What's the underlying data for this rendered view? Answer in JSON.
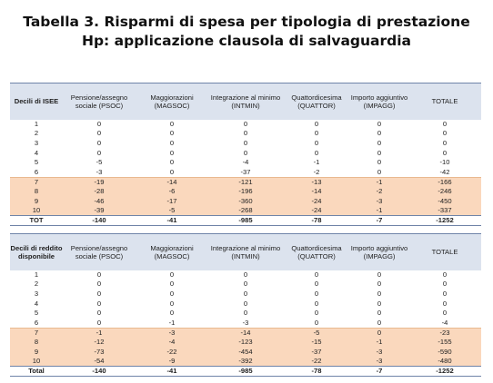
{
  "title": {
    "line1": "Tabella 3. Risparmi di spesa per tipologia di prestazione",
    "line2": "Hp: applicazione clausola di salvaguardia"
  },
  "table1": {
    "header": {
      "first": "Decili di ISEE",
      "cols": [
        "Pensione/assegno sociale (PSOC)",
        "Maggiorazioni (MAGSOC)",
        "Integrazione al minimo (INTMIN)",
        "Quattordicesima (QUATTOR)",
        "Importo aggiuntivo (IMPAGG)",
        "TOTALE"
      ]
    },
    "rows": [
      {
        "label": "1",
        "values": [
          "0",
          "0",
          "0",
          "0",
          "0",
          "0"
        ],
        "highlight": false
      },
      {
        "label": "2",
        "values": [
          "0",
          "0",
          "0",
          "0",
          "0",
          "0"
        ],
        "highlight": false
      },
      {
        "label": "3",
        "values": [
          "0",
          "0",
          "0",
          "0",
          "0",
          "0"
        ],
        "highlight": false
      },
      {
        "label": "4",
        "values": [
          "0",
          "0",
          "0",
          "0",
          "0",
          "0"
        ],
        "highlight": false
      },
      {
        "label": "5",
        "values": [
          "-5",
          "0",
          "-4",
          "-1",
          "0",
          "-10"
        ],
        "highlight": false
      },
      {
        "label": "6",
        "values": [
          "-3",
          "0",
          "-37",
          "-2",
          "0",
          "-42"
        ],
        "highlight": false
      },
      {
        "label": "7",
        "values": [
          "-19",
          "-14",
          "-121",
          "-13",
          "-1",
          "-166"
        ],
        "highlight": true
      },
      {
        "label": "8",
        "values": [
          "-28",
          "-6",
          "-196",
          "-14",
          "-2",
          "-246"
        ],
        "highlight": true
      },
      {
        "label": "9",
        "values": [
          "-46",
          "-17",
          "-360",
          "-24",
          "-3",
          "-450"
        ],
        "highlight": true
      },
      {
        "label": "10",
        "values": [
          "-39",
          "-5",
          "-268",
          "-24",
          "-1",
          "-337"
        ],
        "highlight": true
      }
    ],
    "total": {
      "label": "TOT",
      "values": [
        "-140",
        "-41",
        "-985",
        "-78",
        "-7",
        "-1252"
      ]
    }
  },
  "table2": {
    "header": {
      "first": "Decili di reddito disponibile",
      "cols": [
        "Pensione/assegno sociale (PSOC)",
        "Maggiorazioni (MAGSOC)",
        "Integrazione al minimo (INTMIN)",
        "Quattordicesima (QUATTOR)",
        "Importo aggiuntivo (IMPAGG)",
        "TOTALE"
      ]
    },
    "rows": [
      {
        "label": "1",
        "values": [
          "0",
          "0",
          "0",
          "0",
          "0",
          "0"
        ],
        "highlight": false
      },
      {
        "label": "2",
        "values": [
          "0",
          "0",
          "0",
          "0",
          "0",
          "0"
        ],
        "highlight": false
      },
      {
        "label": "3",
        "values": [
          "0",
          "0",
          "0",
          "0",
          "0",
          "0"
        ],
        "highlight": false
      },
      {
        "label": "4",
        "values": [
          "0",
          "0",
          "0",
          "0",
          "0",
          "0"
        ],
        "highlight": false
      },
      {
        "label": "5",
        "values": [
          "0",
          "0",
          "0",
          "0",
          "0",
          "0"
        ],
        "highlight": false
      },
      {
        "label": "6",
        "values": [
          "0",
          "-1",
          "-3",
          "0",
          "0",
          "-4"
        ],
        "highlight": false
      },
      {
        "label": "7",
        "values": [
          "-1",
          "-3",
          "-14",
          "-5",
          "0",
          "-23"
        ],
        "highlight": true
      },
      {
        "label": "8",
        "values": [
          "-12",
          "-4",
          "-123",
          "-15",
          "-1",
          "-155"
        ],
        "highlight": true
      },
      {
        "label": "9",
        "values": [
          "-73",
          "-22",
          "-454",
          "-37",
          "-3",
          "-590"
        ],
        "highlight": true
      },
      {
        "label": "10",
        "values": [
          "-54",
          "-9",
          "-392",
          "-22",
          "-3",
          "-480"
        ],
        "highlight": true
      }
    ],
    "total": {
      "label": "Total",
      "values": [
        "-140",
        "-41",
        "-985",
        "-78",
        "-7",
        "-1252"
      ]
    }
  },
  "colors": {
    "header_bg": "#dce3ee",
    "highlight_bg": "#fad8bd",
    "rule": "#6f84a8"
  }
}
